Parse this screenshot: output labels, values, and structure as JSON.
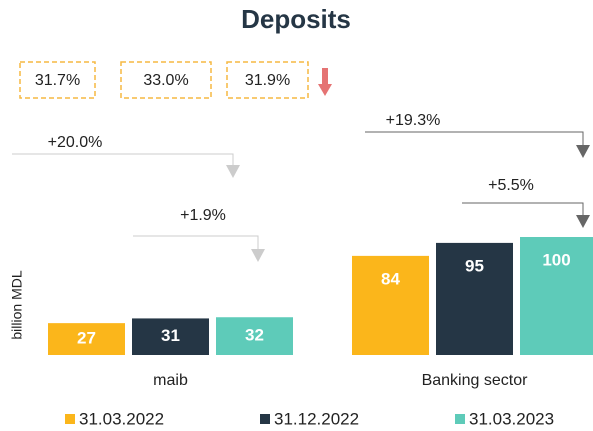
{
  "chart_data": {
    "type": "bar",
    "title": "Deposits",
    "y_label": "billion MDL",
    "categories": [
      "maib",
      "Banking sector"
    ],
    "series": [
      {
        "name": "31.03.2022",
        "color": "#fbb61b",
        "values": [
          27,
          84
        ]
      },
      {
        "name": "31.12.2022",
        "color": "#253645",
        "values": [
          31,
          95
        ]
      },
      {
        "name": "31.03.2023",
        "color": "#5ecbb9",
        "values": [
          32,
          100
        ]
      }
    ],
    "ylim": [
      0,
      250
    ],
    "share_boxes": [
      "31.7%",
      "33.0%",
      "31.9%"
    ],
    "growth_annotations": [
      "+20.0%",
      "+1.9%",
      "+19.3%",
      "+5.5%"
    ]
  }
}
